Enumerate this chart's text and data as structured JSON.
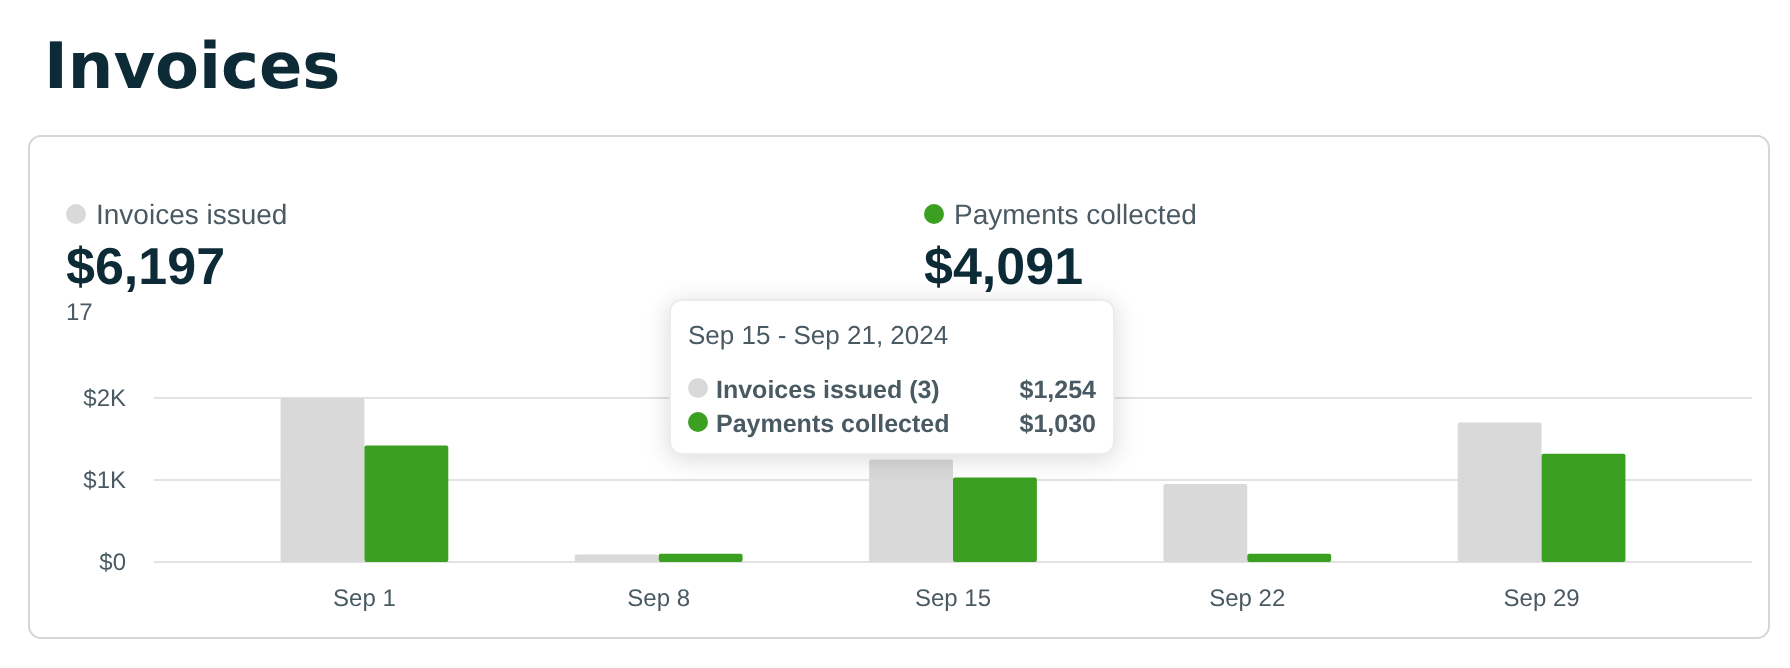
{
  "chart_data": {
    "type": "bar",
    "title": "Invoices",
    "categories": [
      "Sep 1",
      "Sep 8",
      "Sep 15",
      "Sep 22",
      "Sep 29"
    ],
    "series": [
      {
        "name": "Invoices issued",
        "color": "#d9d9d9",
        "values": [
          2000,
          90,
          1250,
          950,
          1700
        ]
      },
      {
        "name": "Payments collected",
        "color": "#3ba022",
        "values": [
          1420,
          100,
          1030,
          100,
          1320
        ]
      }
    ],
    "ylim": [
      0,
      2000
    ],
    "yticks": [
      {
        "value": 0,
        "label": "$0"
      },
      {
        "value": 1000,
        "label": "$1K"
      },
      {
        "value": 2000,
        "label": "$2K"
      }
    ],
    "grid": "y",
    "legend": "top",
    "annotations": [
      "$6,197",
      "17",
      "$4,091",
      "Sep 15 - Sep 21, 2024",
      "Invoices issued (3)",
      "Payments collected",
      "$1,254",
      "$1,030"
    ]
  }
}
